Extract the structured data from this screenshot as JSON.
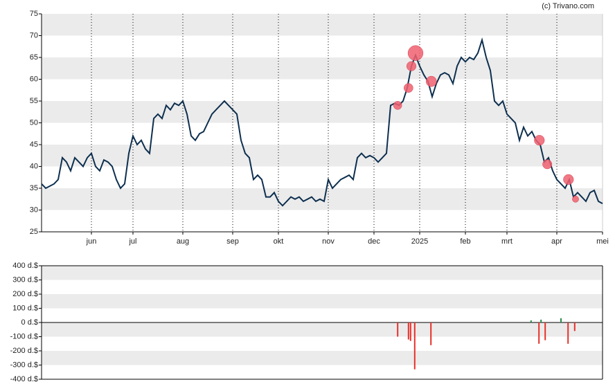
{
  "watermark": "(c) Trivano.com",
  "chart_data": [
    {
      "type": "line",
      "xlim": [
        0,
        135
      ],
      "xticks": [
        {
          "value": 12,
          "label": "jun"
        },
        {
          "value": 22,
          "label": "jul"
        },
        {
          "value": 34,
          "label": "aug"
        },
        {
          "value": 46,
          "label": "sep"
        },
        {
          "value": 57,
          "label": "okt"
        },
        {
          "value": 69,
          "label": "nov"
        },
        {
          "value": 80,
          "label": "dec"
        },
        {
          "value": 91,
          "label": "2025"
        },
        {
          "value": 102,
          "label": "feb"
        },
        {
          "value": 112,
          "label": "mrt"
        },
        {
          "value": 124,
          "label": "apr"
        },
        {
          "value": 135,
          "label": "mei"
        }
      ],
      "ylim": [
        25,
        75
      ],
      "yticks": [
        25,
        30,
        35,
        40,
        45,
        50,
        55,
        60,
        65,
        70,
        75
      ],
      "stripes": true,
      "series": [
        {
          "color": "#0d2f4f",
          "values": [
            36,
            35,
            35.5,
            36,
            37,
            42,
            41,
            39,
            42,
            41,
            40,
            42,
            43,
            40,
            39,
            41.5,
            41,
            40,
            37,
            35,
            36,
            43,
            47,
            45,
            46,
            44,
            43,
            51,
            52,
            51,
            54,
            53,
            54.5,
            54,
            55,
            52,
            47,
            46,
            47.5,
            48,
            50,
            52,
            53,
            54,
            55,
            54,
            53,
            52,
            46,
            43,
            42,
            37,
            38,
            37,
            33,
            33,
            34,
            32,
            31,
            32,
            33,
            32.5,
            33,
            32,
            32.5,
            33,
            32,
            32.5,
            32,
            37,
            35,
            36,
            37,
            37.5,
            38,
            37,
            42,
            43,
            42,
            42.5,
            42,
            41,
            42,
            43,
            54,
            54.5,
            54,
            55,
            58,
            63,
            65.5,
            63,
            61,
            59.5,
            56,
            59,
            61,
            61.5,
            61,
            59,
            63,
            65,
            64,
            65,
            64.5,
            66,
            69,
            65,
            62,
            55,
            54,
            55,
            52,
            51,
            50,
            46,
            49,
            47,
            48,
            46,
            45,
            41,
            42,
            39,
            37,
            36,
            35,
            37,
            33,
            34,
            33,
            32,
            34,
            34.5,
            32,
            31.5
          ]
        }
      ],
      "bubbles": {
        "color": "#f06070",
        "x": [
          85.7,
          88.3,
          89,
          90,
          93.8,
          119.8,
          121.7,
          126.8,
          128.5
        ],
        "values": [
          54,
          58,
          63,
          66,
          59.5,
          46,
          40.5,
          37,
          32.5
        ],
        "sizes": [
          100,
          120,
          130,
          330,
          160,
          150,
          125,
          150,
          60
        ]
      }
    },
    {
      "type": "bar",
      "xlim": [
        0,
        135
      ],
      "ylim": [
        -400,
        400
      ],
      "yticks": [
        {
          "value": -400,
          "label": "-400 d.$"
        },
        {
          "value": -300,
          "label": "-300 d.$"
        },
        {
          "value": -200,
          "label": "-200 d.$"
        },
        {
          "value": -100,
          "label": "-100 d.$"
        },
        {
          "value": 0,
          "label": "0 d.$"
        },
        {
          "value": 100,
          "label": "100 d.$"
        },
        {
          "value": 200,
          "label": "200 d.$"
        },
        {
          "value": 300,
          "label": "300 d.$"
        },
        {
          "value": 400,
          "label": "400 d.$"
        }
      ],
      "stripes": true,
      "color_positive": "#2a8a4a",
      "color_negative": "#e8302a",
      "x": [
        85.7,
        88.3,
        88.8,
        89.8,
        93.7,
        117.8,
        119.7,
        120.2,
        121.2,
        125,
        126.7,
        128.3
      ],
      "values": [
        -100,
        -120,
        -130,
        -330,
        -160,
        15,
        -150,
        20,
        -125,
        30,
        -150,
        -60
      ]
    }
  ]
}
